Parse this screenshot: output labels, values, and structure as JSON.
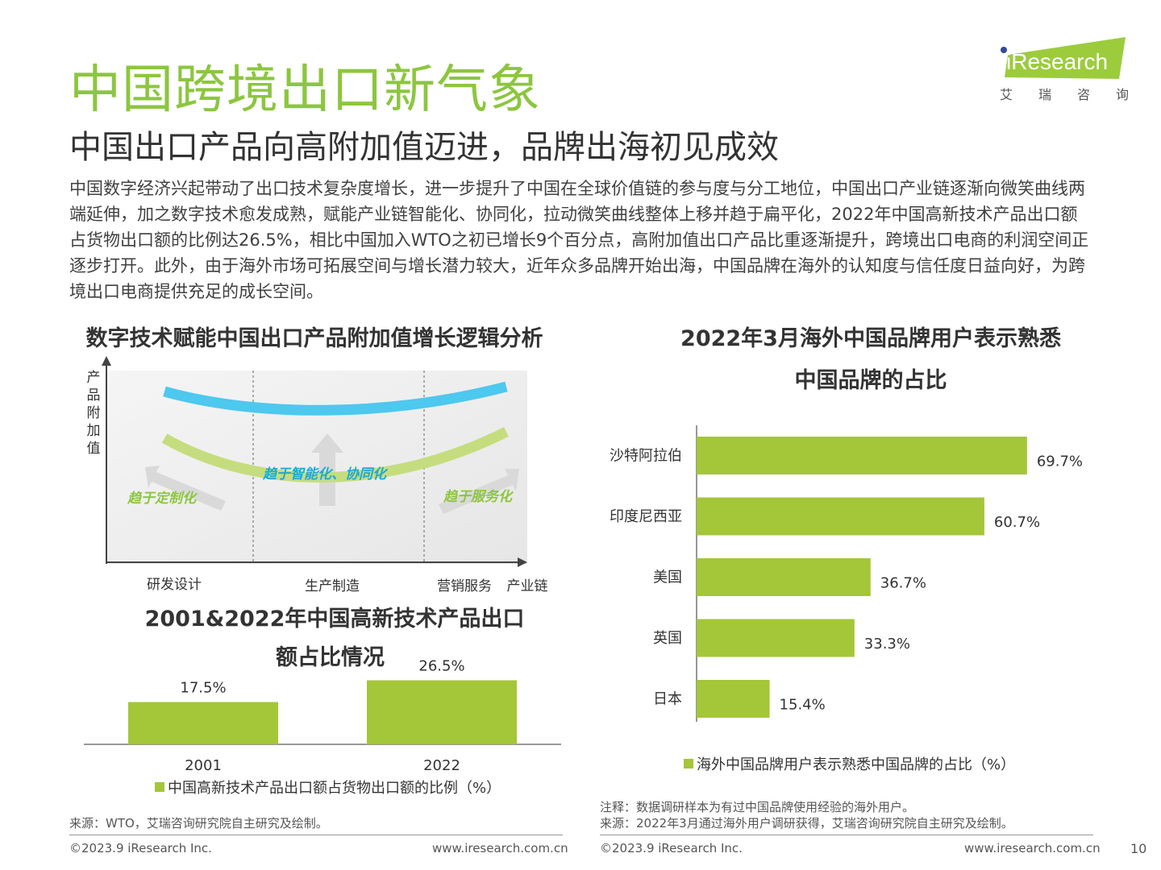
{
  "header": {
    "title": "中国跨境出口新气象",
    "subtitle": "中国出口产品向高附加值迈进，品牌出海初见成效",
    "logo_text": "iResearch",
    "logo_cn": [
      "艾",
      "瑞",
      "咨",
      "询"
    ]
  },
  "intro": "中国数字经济兴起带动了出口技术复杂度增长，进一步提升了中国在全球价值链的参与度与分工地位，中国出口产业链逐渐向微笑曲线两端延伸，加之数字技术愈发成熟，赋能产业链智能化、协同化，拉动微笑曲线整体上移并趋于扁平化，2022年中国高新技术产品出口额占货物出口额的比例达26.5%，相比中国加入WTO之初已增长9个百分点，高附加值出口产品比重逐渐提升，跨境出口电商的利润空间正逐步打开。此外，由于海外市场可拓展空间与增长潜力较大，近年众多品牌开始出海，中国品牌在海外的认知度与信任度日益向好，为跨境出口电商提供充足的成长空间。",
  "smile_diagram": {
    "title": "数字技术赋能中国出口产品附加值增长逻辑分析",
    "y_label": [
      "产",
      "品",
      "附",
      "加",
      "值"
    ],
    "x_labels": [
      "研发设计",
      "生产制造",
      "营销服务",
      "产业链"
    ],
    "arrows": [
      "趋于定制化",
      "趋于智能化、协同化",
      "趋于服务化"
    ],
    "colors": {
      "upper_curve": "#4dc8ee",
      "lower_curve": "#c5dd7e",
      "arrow": "#d9d9d9"
    }
  },
  "hightech_chart": {
    "title_line1": "2001&2022年中国高新技术产品出口",
    "title_line2": "额占比情况",
    "legend": "中国高新技术产品出口额占货物出口额的比例（%）",
    "source": "来源：WTO，艾瑞咨询研究院自主研究及绘制。"
  },
  "brand_chart": {
    "title_line1": "2022年3月海外中国品牌用户表示熟悉",
    "title_line2": "中国品牌的占比",
    "legend": "海外中国品牌用户表示熟悉中国品牌的占比（%）",
    "note": "注释：数据调研样本为有过中国品牌使用经验的海外用户。",
    "source": "来源：2022年3月通过海外用户调研获得，艾瑞咨询研究院自主研究及绘制。"
  },
  "chart_data": [
    {
      "type": "bar",
      "categories": [
        "2001",
        "2022"
      ],
      "values": [
        17.5,
        26.5
      ],
      "value_labels": [
        "17.5%",
        "26.5%"
      ],
      "title": "2001&2022年中国高新技术产品出口额占比情况",
      "series_name": "中国高新技术产品出口额占货物出口额的比例（%）",
      "color": "#a4c639",
      "ylim": [
        0,
        30
      ]
    },
    {
      "type": "bar",
      "orientation": "horizontal",
      "categories": [
        "沙特阿拉伯",
        "印度尼西亚",
        "美国",
        "英国",
        "日本"
      ],
      "values": [
        69.7,
        60.7,
        36.7,
        33.3,
        15.4
      ],
      "value_labels": [
        "69.7%",
        "60.7%",
        "36.7%",
        "33.3%",
        "15.4%"
      ],
      "title": "2022年3月海外中国品牌用户表示熟悉中国品牌的占比",
      "series_name": "海外中国品牌用户表示熟悉中国品牌的占比（%）",
      "color": "#a4c639",
      "xlim": [
        0,
        100
      ]
    }
  ],
  "footer": {
    "left_copyright": "©2023.9 iResearch Inc.",
    "left_url": "www.iresearch.com.cn",
    "right_copyright": "©2023.9 iResearch Inc.",
    "right_url": "www.iresearch.com.cn",
    "page_number": "10"
  }
}
